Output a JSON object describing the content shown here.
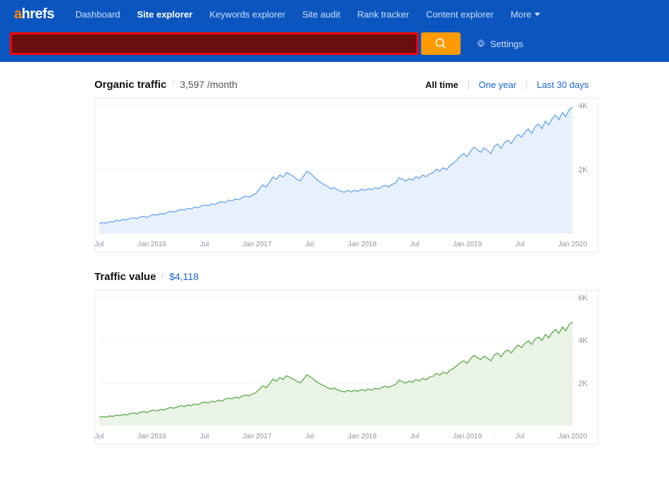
{
  "logo": {
    "a": "a",
    "rest": "hrefs"
  },
  "nav": {
    "items": [
      {
        "label": "Dashboard",
        "active": false
      },
      {
        "label": "Site explorer",
        "active": true
      },
      {
        "label": "Keywords explorer",
        "active": false
      },
      {
        "label": "Site audit",
        "active": false
      },
      {
        "label": "Rank tracker",
        "active": false
      },
      {
        "label": "Content explorer",
        "active": false
      }
    ],
    "more_label": "More"
  },
  "search": {
    "value": "",
    "placeholder": ""
  },
  "settings_label": "Settings",
  "panels": [
    {
      "title": "Organic traffic",
      "value": "3,597 /month",
      "value_is_link": false,
      "show_time_filters": true,
      "time_filters": [
        "All time",
        "One year",
        "Last 30 days"
      ],
      "chart": {
        "type": "area",
        "stroke": "#6aa8ec",
        "fill": "#e8f1fb",
        "background": "#ffffff",
        "grid_color": "#eef1f5",
        "ylim": [
          0,
          4000
        ],
        "yticks": [
          {
            "v": 2000,
            "label": "2K"
          },
          {
            "v": 4000,
            "label": "4K"
          }
        ],
        "x_labels": [
          "Jul",
          "Jan 2016",
          "Jul",
          "Jan 2017",
          "Jul",
          "Jan 2018",
          "Jul",
          "Jan 2019",
          "Jul",
          "Jan 2020"
        ],
        "data": [
          320,
          350,
          330,
          380,
          360,
          420,
          400,
          450,
          430,
          480,
          500,
          470,
          520,
          540,
          510,
          560,
          600,
          580,
          630,
          610,
          660,
          700,
          680,
          720,
          760,
          740,
          790,
          770,
          830,
          810,
          870,
          900,
          870,
          930,
          910,
          970,
          1000,
          970,
          1050,
          1020,
          1090,
          1060,
          1130,
          1170,
          1140,
          1200,
          1260,
          1390,
          1520,
          1460,
          1600,
          1770,
          1700,
          1830,
          1770,
          1910,
          1850,
          1790,
          1700,
          1650,
          1800,
          1950,
          1880,
          1780,
          1680,
          1600,
          1540,
          1470,
          1400,
          1440,
          1370,
          1330,
          1290,
          1350,
          1300,
          1360,
          1320,
          1390,
          1350,
          1410,
          1370,
          1440,
          1400,
          1470,
          1510,
          1460,
          1540,
          1580,
          1750,
          1700,
          1640,
          1720,
          1670,
          1780,
          1730,
          1830,
          1780,
          1870,
          1900,
          2010,
          1950,
          2060,
          2000,
          2130,
          2200,
          2300,
          2420,
          2500,
          2400,
          2570,
          2700,
          2630,
          2540,
          2680,
          2600,
          2500,
          2720,
          2800,
          2660,
          2840,
          2920,
          2810,
          2980,
          3100,
          3010,
          3170,
          3270,
          3130,
          3340,
          3420,
          3280,
          3510,
          3390,
          3590,
          3700,
          3560,
          3780,
          3650,
          3870,
          3950
        ]
      }
    },
    {
      "title": "Traffic value",
      "value": "$4,118",
      "value_is_link": true,
      "show_time_filters": false,
      "chart": {
        "type": "area",
        "stroke": "#5fae4f",
        "fill": "#eaf4e6",
        "background": "#ffffff",
        "grid_color": "#eef1f5",
        "ylim": [
          0,
          6000
        ],
        "yticks": [
          {
            "v": 2000,
            "label": "2K"
          },
          {
            "v": 4000,
            "label": "4K"
          },
          {
            "v": 6000,
            "label": "6K"
          }
        ],
        "x_labels": [
          "Jul",
          "Jan 2016",
          "Jul",
          "Jan 2017",
          "Jul",
          "Jan 2018",
          "Jul",
          "Jan 2019",
          "Jul",
          "Jan 2020"
        ],
        "data": [
          400,
          430,
          410,
          460,
          440,
          500,
          470,
          530,
          510,
          570,
          600,
          560,
          630,
          660,
          620,
          690,
          730,
          700,
          770,
          740,
          810,
          860,
          820,
          890,
          940,
          900,
          970,
          940,
          1020,
          990,
          1070,
          1110,
          1070,
          1150,
          1120,
          1200,
          1160,
          1250,
          1300,
          1260,
          1340,
          1300,
          1390,
          1440,
          1400,
          1490,
          1550,
          1710,
          1870,
          1790,
          1960,
          2180,
          2090,
          2250,
          2170,
          2340,
          2260,
          2190,
          2080,
          2010,
          2190,
          2380,
          2290,
          2170,
          2040,
          1950,
          1870,
          1790,
          1710,
          1770,
          1680,
          1630,
          1580,
          1660,
          1600,
          1670,
          1610,
          1700,
          1640,
          1720,
          1670,
          1760,
          1710,
          1800,
          1850,
          1790,
          1880,
          1930,
          2140,
          2070,
          2000,
          2090,
          2030,
          2170,
          2100,
          2220,
          2150,
          2280,
          2320,
          2450,
          2370,
          2510,
          2440,
          2600,
          2680,
          2810,
          2950,
          3040,
          2920,
          3130,
          3290,
          3200,
          3090,
          3260,
          3160,
          3040,
          3310,
          3400,
          3230,
          3450,
          3550,
          3410,
          3620,
          3770,
          3660,
          3850,
          3970,
          3810,
          4060,
          4150,
          3990,
          4270,
          4120,
          4360,
          4500,
          4330,
          4620,
          4450,
          4740,
          4850
        ]
      }
    }
  ]
}
